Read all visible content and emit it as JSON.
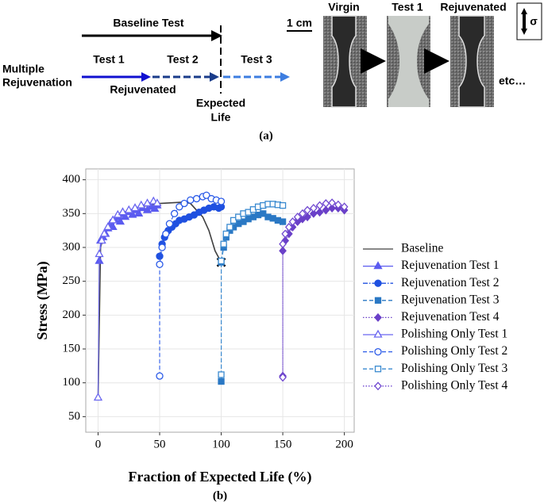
{
  "figure_a": {
    "baseline_label": "Baseline Test",
    "multiple_label": {
      "lines": [
        "Multiple",
        "Rejuvenation"
      ]
    },
    "test_labels": [
      "Test 1",
      "Test 2",
      "Test 3"
    ],
    "rejuvenated_label": "Rejuvenated",
    "expected_life": {
      "lines": [
        "Expected",
        "Life"
      ]
    },
    "scale_bar": "1 cm",
    "photo_labels": [
      "Virgin",
      "Test 1",
      "Rejuvenated"
    ],
    "etc": "etc…",
    "sigma": "σ",
    "caption": "(a)"
  },
  "chart_data": {
    "type": "line",
    "xlabel": "Fraction of Expected Life (%)",
    "ylabel": "Stress (MPa)",
    "caption": "(b)",
    "xlim": [
      -10,
      208
    ],
    "ylim": [
      27,
      416
    ],
    "xticks": [
      0,
      50,
      100,
      150,
      200
    ],
    "yticks": [
      50,
      100,
      150,
      200,
      250,
      300,
      350,
      400
    ],
    "grid": true,
    "legend": "right",
    "series": [
      {
        "name": "Baseline",
        "color": "#404040",
        "line_style": "solid",
        "marker": "none",
        "end_marker": "cross",
        "x": [
          0,
          2,
          5,
          10,
          20,
          30,
          40,
          50,
          60,
          70,
          75,
          80,
          85,
          90,
          95,
          100
        ],
        "values": [
          80,
          300,
          320,
          335,
          350,
          358,
          362,
          365,
          366,
          367,
          365,
          355,
          345,
          325,
          295,
          278
        ]
      },
      {
        "name": "Rejuvenation Test 1",
        "color": "#5b5bf0",
        "line_style": "solid",
        "marker": "triangle",
        "filled": true,
        "x": [
          1,
          2,
          4,
          6,
          8,
          10,
          12,
          14,
          16,
          18,
          20,
          22,
          25,
          28,
          30,
          33,
          36,
          40,
          43,
          46,
          48
        ],
        "values": [
          280,
          310,
          315,
          320,
          328,
          335,
          330,
          340,
          345,
          338,
          350,
          345,
          352,
          348,
          355,
          350,
          358,
          355,
          360,
          357,
          362
        ]
      },
      {
        "name": "Rejuvenation Test 2",
        "color": "#1f50e0",
        "line_style": "dashdot",
        "marker": "circle",
        "filled": true,
        "x": [
          50,
          52,
          54,
          57,
          60,
          63,
          66,
          70,
          74,
          78,
          82,
          86,
          90,
          94,
          98,
          100
        ],
        "values": [
          287,
          305,
          315,
          325,
          330,
          335,
          340,
          342,
          345,
          348,
          352,
          355,
          358,
          360,
          358,
          360
        ]
      },
      {
        "name": "Rejuvenation Test 3",
        "color": "#2a78c4",
        "line_style": "dashed",
        "marker": "square",
        "filled": true,
        "x": [
          100,
          100,
          102,
          104,
          107,
          110,
          114,
          118,
          122,
          126,
          130,
          134,
          138,
          142,
          146,
          150
        ],
        "values": [
          102,
          278,
          300,
          315,
          325,
          330,
          335,
          338,
          342,
          345,
          348,
          350,
          345,
          343,
          340,
          338
        ]
      },
      {
        "name": "Rejuvenation Test 4",
        "color": "#6a40c8",
        "line_style": "dotted",
        "marker": "diamond",
        "filled": true,
        "x": [
          150,
          150,
          152,
          155,
          158,
          162,
          166,
          170,
          175,
          180,
          185,
          190,
          195,
          200
        ],
        "values": [
          110,
          295,
          310,
          320,
          330,
          338,
          342,
          345,
          350,
          352,
          355,
          358,
          358,
          355
        ]
      },
      {
        "name": "Polishing Only Test 1",
        "color": "#6a66f0",
        "line_style": "solid",
        "marker": "triangle",
        "filled": false,
        "x": [
          0,
          1,
          3,
          5,
          8,
          12,
          16,
          20,
          25,
          30,
          35,
          40,
          45,
          48
        ],
        "values": [
          78,
          290,
          310,
          320,
          330,
          340,
          348,
          352,
          355,
          358,
          362,
          365,
          368,
          365
        ]
      },
      {
        "name": "Polishing Only Test 2",
        "color": "#2a5ae8",
        "line_style": "dashed",
        "marker": "circle",
        "filled": false,
        "x": [
          50,
          50,
          52,
          55,
          58,
          62,
          66,
          70,
          75,
          80,
          85,
          88,
          92,
          96,
          100
        ],
        "values": [
          110,
          275,
          300,
          320,
          335,
          350,
          360,
          365,
          370,
          372,
          375,
          377,
          372,
          370,
          368
        ]
      },
      {
        "name": "Polishing Only Test 3",
        "color": "#3a8ad0",
        "line_style": "dashed",
        "marker": "square",
        "filled": false,
        "x": [
          100,
          100,
          102,
          104,
          107,
          110,
          114,
          118,
          122,
          126,
          130,
          134,
          138,
          142,
          146,
          150
        ],
        "values": [
          112,
          280,
          305,
          320,
          330,
          340,
          345,
          350,
          352,
          356,
          360,
          362,
          364,
          364,
          363,
          362
        ]
      },
      {
        "name": "Polishing Only Test 4",
        "color": "#7048d0",
        "line_style": "dotted",
        "marker": "diamond",
        "filled": false,
        "x": [
          150,
          150,
          152,
          155,
          158,
          162,
          166,
          170,
          175,
          180,
          185,
          190,
          195,
          200
        ],
        "values": [
          108,
          305,
          320,
          330,
          338,
          345,
          350,
          355,
          358,
          362,
          365,
          366,
          363,
          360
        ]
      }
    ]
  }
}
